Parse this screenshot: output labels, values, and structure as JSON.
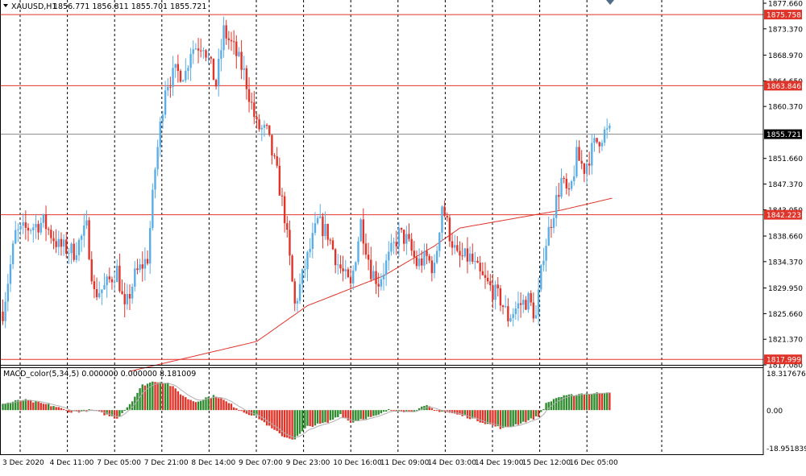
{
  "header": {
    "symbol_label": "XAUUSD,H1",
    "ohlc_text": "1856.771 1856.811 1855.701 1855.721"
  },
  "indicator": {
    "label_text": "MACD_color(5,34,5) 0.000000 0.000000 8.181009",
    "axis_top": "18.317676",
    "axis_zero": "0.00",
    "axis_bottom": "-18.951839"
  },
  "price_axis": {
    "ticks": [
      "1877.660",
      "1873.370",
      "1868.970",
      "1864.650",
      "1860.370",
      "1851.660",
      "1847.370",
      "1843.050",
      "1838.660",
      "1834.370",
      "1829.950",
      "1825.660",
      "1821.370",
      "1817.080"
    ]
  },
  "price_lines": [
    {
      "label": "1875.758",
      "value": 1875.758,
      "color": "#e0342a"
    },
    {
      "label": "1863.846",
      "value": 1863.846,
      "color": "#e0342a"
    },
    {
      "label": "1855.721",
      "value": 1855.721,
      "color": "#000000"
    },
    {
      "label": "1842.223",
      "value": 1842.223,
      "color": "#e0342a"
    },
    {
      "label": "1817.999",
      "value": 1817.999,
      "color": "#e0342a"
    }
  ],
  "time_axis": {
    "labels": [
      "3 Dec 2020",
      "4 Dec 11:00",
      "7 Dec 05:00",
      "7 Dec 21:00",
      "8 Dec 14:00",
      "9 Dec 07:00",
      "9 Dec 23:00",
      "10 Dec 16:00",
      "11 Dec 09:00",
      "14 Dec 03:00",
      "14 Dec 19:00",
      "15 Dec 12:00",
      "16 Dec 05:00"
    ]
  },
  "colors": {
    "bull": "#5aaee8",
    "bear": "#e0342a",
    "ma": "#e0342a",
    "macd_up": "#2e8b2e",
    "macd_down": "#e0342a",
    "signal": "#b0b0b0",
    "grid": "#000000",
    "current_line": "#888888"
  },
  "chart_data": {
    "type": "candlestick",
    "symbol": "XAUUSD",
    "timeframe": "H1",
    "ylim": [
      1817.08,
      1877.66
    ],
    "x_labels": [
      "3 Dec 2020",
      "4 Dec 11:00",
      "7 Dec 05:00",
      "7 Dec 21:00",
      "8 Dec 14:00",
      "9 Dec 07:00",
      "9 Dec 23:00",
      "10 Dec 16:00",
      "11 Dec 09:00",
      "14 Dec 03:00",
      "14 Dec 19:00",
      "15 Dec 12:00",
      "16 Dec 05:00"
    ],
    "waypoints": [
      [
        0,
        1826
      ],
      [
        5,
        1839
      ],
      [
        10,
        1840
      ],
      [
        16,
        1841
      ],
      [
        22,
        1837
      ],
      [
        28,
        1836
      ],
      [
        33,
        1840
      ],
      [
        36,
        1829
      ],
      [
        40,
        1830
      ],
      [
        45,
        1833
      ],
      [
        48,
        1826
      ],
      [
        52,
        1832
      ],
      [
        57,
        1835
      ],
      [
        60,
        1850
      ],
      [
        64,
        1864
      ],
      [
        68,
        1866
      ],
      [
        72,
        1866
      ],
      [
        74,
        1870
      ],
      [
        79,
        1871
      ],
      [
        84,
        1864
      ],
      [
        87,
        1873
      ],
      [
        91,
        1870
      ],
      [
        95,
        1866
      ],
      [
        100,
        1857
      ],
      [
        104,
        1856
      ],
      [
        108,
        1849
      ],
      [
        111,
        1842
      ],
      [
        115,
        1827
      ],
      [
        120,
        1835
      ],
      [
        124,
        1841
      ],
      [
        128,
        1839
      ],
      [
        132,
        1834
      ],
      [
        137,
        1830
      ],
      [
        141,
        1841
      ],
      [
        145,
        1833
      ],
      [
        148,
        1831
      ],
      [
        152,
        1835
      ],
      [
        156,
        1839
      ],
      [
        159,
        1838
      ],
      [
        163,
        1834
      ],
      [
        167,
        1835
      ],
      [
        170,
        1833
      ],
      [
        173,
        1844
      ],
      [
        176,
        1839
      ],
      [
        179,
        1835
      ],
      [
        184,
        1835
      ],
      [
        188,
        1832
      ],
      [
        192,
        1830
      ],
      [
        196,
        1828
      ],
      [
        199,
        1825
      ],
      [
        203,
        1827
      ],
      [
        207,
        1828
      ],
      [
        210,
        1825
      ],
      [
        213,
        1836
      ],
      [
        217,
        1843
      ],
      [
        220,
        1848
      ],
      [
        223,
        1845
      ],
      [
        226,
        1852
      ],
      [
        229,
        1850
      ],
      [
        233,
        1854
      ],
      [
        237,
        1856
      ],
      [
        239,
        1856
      ]
    ],
    "ma": {
      "name": "MA",
      "points": [
        [
          50,
          1816
        ],
        [
          100,
          1821
        ],
        [
          120,
          1827
        ],
        [
          150,
          1832
        ],
        [
          170,
          1837
        ],
        [
          180,
          1840
        ],
        [
          200,
          1841.5
        ],
        [
          220,
          1843
        ],
        [
          240,
          1845
        ]
      ]
    },
    "macd": {
      "name": "MACD_color(5,34,5)",
      "ylim": [
        -18.951839,
        18.317676
      ],
      "waypoints": [
        [
          0,
          3
        ],
        [
          8,
          5
        ],
        [
          20,
          2
        ],
        [
          27,
          -1
        ],
        [
          35,
          0
        ],
        [
          40,
          -2
        ],
        [
          45,
          -4
        ],
        [
          50,
          3
        ],
        [
          55,
          12
        ],
        [
          60,
          14
        ],
        [
          65,
          13
        ],
        [
          72,
          6
        ],
        [
          76,
          4
        ],
        [
          80,
          6
        ],
        [
          84,
          7
        ],
        [
          88,
          4
        ],
        [
          95,
          -1
        ],
        [
          100,
          -3
        ],
        [
          106,
          -9
        ],
        [
          111,
          -13
        ],
        [
          115,
          -14
        ],
        [
          120,
          -8
        ],
        [
          128,
          -6
        ],
        [
          133,
          -2
        ],
        [
          137,
          -6
        ],
        [
          142,
          -4
        ],
        [
          147,
          -3
        ],
        [
          152,
          0
        ],
        [
          156,
          0
        ],
        [
          160,
          -1
        ],
        [
          167,
          2
        ],
        [
          170,
          0
        ],
        [
          175,
          -1
        ],
        [
          182,
          -3
        ],
        [
          187,
          -5
        ],
        [
          192,
          -7
        ],
        [
          197,
          -9
        ],
        [
          202,
          -7
        ],
        [
          207,
          -5
        ],
        [
          211,
          -3
        ],
        [
          214,
          3
        ],
        [
          218,
          6
        ],
        [
          223,
          7
        ],
        [
          228,
          8
        ],
        [
          233,
          8
        ],
        [
          239,
          9
        ]
      ]
    }
  }
}
